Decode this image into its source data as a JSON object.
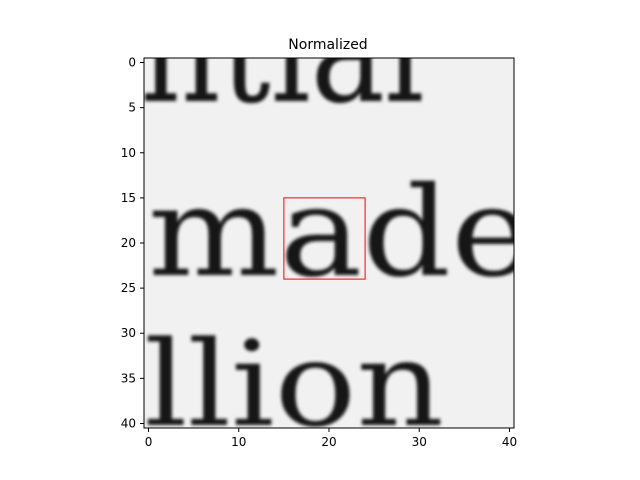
{
  "chart_data": {
    "type": "heatmap",
    "title": "Normalized",
    "colormap": "gray",
    "xlim": [
      -0.5,
      40.5
    ],
    "ylim": [
      40.5,
      -0.5
    ],
    "x_ticks": [
      0,
      10,
      20,
      30,
      40
    ],
    "x_tick_labels": [
      "0",
      "10",
      "20",
      "30",
      "40"
    ],
    "y_ticks": [
      0,
      5,
      10,
      15,
      20,
      25,
      30,
      35,
      40
    ],
    "y_tick_labels": [
      "0",
      "5",
      "10",
      "15",
      "20",
      "25",
      "30",
      "35",
      "40"
    ],
    "image_text_rows": [
      {
        "text": "ntial",
        "row_range": [
          0,
          4
        ]
      },
      {
        "text": "made",
        "row_range": [
          15,
          24
        ]
      },
      {
        "text": "llion",
        "row_range": [
          31,
          40
        ]
      }
    ],
    "highlight_box": {
      "x0": 15,
      "y0": 15,
      "x1": 24,
      "y1": 24,
      "color": "#ff0000"
    }
  }
}
